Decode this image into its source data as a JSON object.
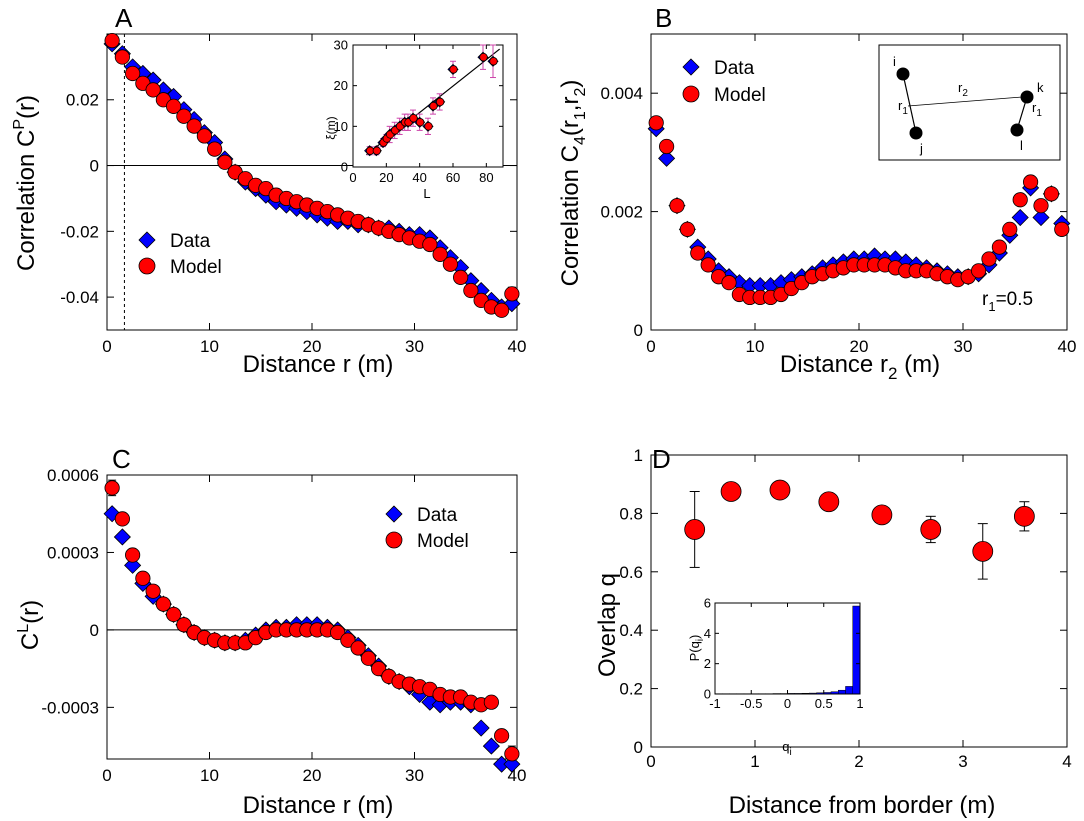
{
  "chart_data": [
    {
      "panel": "A",
      "type": "scatter",
      "xlabel": "Distance r (m)",
      "ylabel": "Correlation C^P(r)",
      "xlim": [
        0,
        40
      ],
      "ylim": [
        -0.05,
        0.04
      ],
      "xticks": [
        "0",
        "10",
        "20",
        "30",
        "40"
      ],
      "yticks": [
        "-0.04",
        "-0.02",
        "0",
        "0.02"
      ],
      "legend_position": "center-left",
      "series": [
        {
          "name": "Data",
          "marker": "diamond",
          "color": "#0000ff",
          "x": [
            0.5,
            1.5,
            2.5,
            3.5,
            4.5,
            5.5,
            6.5,
            7.5,
            8.5,
            9.5,
            10.5,
            11.5,
            12.5,
            13.5,
            14.5,
            15.5,
            16.5,
            17.5,
            18.5,
            19.5,
            20.5,
            21.5,
            22.5,
            23.5,
            24.5,
            25.5,
            26.5,
            27.5,
            28.5,
            29.5,
            30.5,
            31.5,
            32.5,
            33.5,
            34.5,
            35.5,
            36.5,
            37.5,
            38.5,
            39.5
          ],
          "y": [
            0.037,
            0.034,
            0.03,
            0.028,
            0.026,
            0.023,
            0.021,
            0.017,
            0.014,
            0.01,
            0.007,
            0.002,
            -0.002,
            -0.005,
            -0.007,
            -0.009,
            -0.011,
            -0.012,
            -0.013,
            -0.014,
            -0.015,
            -0.016,
            -0.017,
            -0.017,
            -0.018,
            -0.018,
            -0.019,
            -0.019,
            -0.02,
            -0.021,
            -0.021,
            -0.022,
            -0.025,
            -0.028,
            -0.031,
            -0.035,
            -0.038,
            -0.041,
            -0.043,
            -0.042
          ]
        },
        {
          "name": "Model",
          "marker": "circle",
          "color": "#ff0000",
          "x": [
            0.5,
            1.5,
            2.5,
            3.5,
            4.5,
            5.5,
            6.5,
            7.5,
            8.5,
            9.5,
            10.5,
            11.5,
            12.5,
            13.5,
            14.5,
            15.5,
            16.5,
            17.5,
            18.5,
            19.5,
            20.5,
            21.5,
            22.5,
            23.5,
            24.5,
            25.5,
            26.5,
            27.5,
            28.5,
            29.5,
            30.5,
            31.5,
            32.5,
            33.5,
            34.5,
            35.5,
            36.5,
            37.5,
            38.5,
            39.5
          ],
          "y": [
            0.038,
            0.033,
            0.028,
            0.025,
            0.023,
            0.02,
            0.018,
            0.015,
            0.012,
            0.009,
            0.005,
            0.001,
            -0.002,
            -0.004,
            -0.006,
            -0.007,
            -0.009,
            -0.01,
            -0.011,
            -0.012,
            -0.013,
            -0.014,
            -0.015,
            -0.016,
            -0.017,
            -0.018,
            -0.019,
            -0.02,
            -0.021,
            -0.022,
            -0.023,
            -0.024,
            -0.027,
            -0.03,
            -0.034,
            -0.038,
            -0.041,
            -0.043,
            -0.044,
            -0.039
          ],
          "errors_y": {
            "39.5": 0.002
          }
        }
      ],
      "annotations": [
        {
          "type": "vline",
          "x": 1.7,
          "style": "dotted"
        },
        {
          "type": "hline",
          "y": 0
        }
      ],
      "inset": {
        "type": "scatter",
        "xlabel": "L",
        "ylabel": "ξ(m)",
        "xlim": [
          0,
          90
        ],
        "ylim": [
          0,
          30
        ],
        "xticks": [
          "0",
          "20",
          "40",
          "60",
          "80"
        ],
        "yticks": [
          "0",
          "10",
          "20",
          "30"
        ],
        "series": [
          {
            "name": "Data",
            "marker": "diamond",
            "color": "#0000ff",
            "x": [
              10,
              14,
              18,
              20,
              22,
              25,
              28,
              31,
              33,
              36,
              40,
              45,
              48,
              52,
              60,
              78,
              84
            ],
            "y": [
              4,
              4,
              6,
              7,
              8,
              9,
              10,
              11,
              11,
              12,
              11,
              10,
              15,
              16,
              24,
              27,
              26
            ]
          },
          {
            "name": "Model",
            "marker": "circle",
            "color": "#ff0000",
            "x": [
              10,
              14,
              18,
              20,
              22,
              25,
              28,
              31,
              33,
              36,
              40,
              45,
              48,
              52,
              60,
              78,
              84
            ],
            "y": [
              4,
              4,
              6,
              7,
              8,
              9,
              10,
              11,
              11,
              12,
              11,
              10,
              15,
              16,
              24,
              27,
              26
            ],
            "error": [
              1,
              1,
              1,
              1,
              2,
              2,
              2,
              2,
              2,
              2,
              2,
              2,
              2,
              2,
              2,
              3,
              4
            ]
          }
        ],
        "fit_line": {
          "x": [
            8,
            88
          ],
          "y": [
            3,
            29
          ]
        }
      }
    },
    {
      "panel": "B",
      "type": "scatter",
      "xlabel": "Distance r_2 (m)",
      "ylabel": "Correlation C_4(r_1,r_2)",
      "xlim": [
        0,
        40
      ],
      "ylim": [
        0,
        0.005
      ],
      "xticks": [
        "0",
        "10",
        "20",
        "30",
        "40"
      ],
      "yticks": [
        "0",
        "0.002",
        "0.004"
      ],
      "legend_position": "top-left",
      "annotation_text": "r1=0.5",
      "series": [
        {
          "name": "Data",
          "marker": "diamond",
          "color": "#0000ff",
          "x": [
            0.5,
            1.5,
            2.5,
            3.5,
            4.5,
            5.5,
            6.5,
            7.5,
            8.5,
            9.5,
            10.5,
            11.5,
            12.5,
            13.5,
            14.5,
            15.5,
            16.5,
            17.5,
            18.5,
            19.5,
            20.5,
            21.5,
            22.5,
            23.5,
            24.5,
            25.5,
            26.5,
            27.5,
            28.5,
            29.5,
            30.5,
            31.5,
            32.5,
            33.5,
            34.5,
            35.5,
            36.5,
            37.5,
            38.5,
            39.5
          ],
          "y": [
            0.0034,
            0.0029,
            0.0021,
            0.0017,
            0.0014,
            0.0012,
            0.001,
            0.0009,
            0.0008,
            0.00075,
            0.00075,
            0.00075,
            0.0008,
            0.00085,
            0.0009,
            0.00095,
            0.00105,
            0.0011,
            0.00115,
            0.0012,
            0.0012,
            0.00125,
            0.0012,
            0.0012,
            0.00115,
            0.0011,
            0.00105,
            0.001,
            0.00095,
            0.0009,
            0.0009,
            0.00095,
            0.0011,
            0.0013,
            0.0016,
            0.0019,
            0.0024,
            0.0019,
            0.0023,
            0.0018
          ]
        },
        {
          "name": "Model",
          "marker": "circle",
          "color": "#ff0000",
          "x": [
            0.5,
            1.5,
            2.5,
            3.5,
            4.5,
            5.5,
            6.5,
            7.5,
            8.5,
            9.5,
            10.5,
            11.5,
            12.5,
            13.5,
            14.5,
            15.5,
            16.5,
            17.5,
            18.5,
            19.5,
            20.5,
            21.5,
            22.5,
            23.5,
            24.5,
            25.5,
            26.5,
            27.5,
            28.5,
            29.5,
            30.5,
            31.5,
            32.5,
            33.5,
            34.5,
            35.5,
            36.5,
            37.5,
            38.5,
            39.5
          ],
          "y": [
            0.0035,
            0.0031,
            0.0021,
            0.0017,
            0.0013,
            0.0011,
            0.0009,
            0.0008,
            0.0006,
            0.00055,
            0.00055,
            0.00055,
            0.0006,
            0.0007,
            0.0008,
            0.0009,
            0.00095,
            0.001,
            0.00105,
            0.0011,
            0.0011,
            0.0011,
            0.0011,
            0.00105,
            0.001,
            0.001,
            0.001,
            0.00095,
            0.0009,
            0.00085,
            0.0009,
            0.001,
            0.0012,
            0.0014,
            0.0017,
            0.0022,
            0.0025,
            0.0021,
            0.0023,
            0.0017
          ]
        }
      ],
      "inset_diagram": {
        "points": [
          "i",
          "j",
          "k",
          "l"
        ],
        "labels": [
          "r1",
          "r2",
          "r1"
        ]
      }
    },
    {
      "panel": "C",
      "type": "scatter",
      "xlabel": "Distance r (m)",
      "ylabel": "C^L(r)",
      "xlim": [
        0,
        40
      ],
      "ylim": [
        -0.0005,
        0.0006
      ],
      "xticks": [
        "0",
        "10",
        "20",
        "30",
        "40"
      ],
      "yticks": [
        "-0.0003",
        "0",
        "0.0003",
        "0.0006"
      ],
      "legend_position": "top-right",
      "series": [
        {
          "name": "Data",
          "marker": "diamond",
          "color": "#0000ff",
          "x": [
            0.5,
            1.5,
            2.5,
            3.5,
            4.5,
            5.5,
            6.5,
            7.5,
            8.5,
            9.5,
            10.5,
            11.5,
            12.5,
            13.5,
            14.5,
            15.5,
            16.5,
            17.5,
            18.5,
            19.5,
            20.5,
            21.5,
            22.5,
            23.5,
            24.5,
            25.5,
            26.5,
            27.5,
            28.5,
            29.5,
            30.5,
            31.5,
            32.5,
            33.5,
            34.5,
            35.5,
            36.5,
            37.5,
            38.5,
            39.5
          ],
          "y": [
            0.00045,
            0.00036,
            0.00025,
            0.00018,
            0.00013,
            0.0001,
            6e-05,
            2e-05,
            -1e-05,
            -3e-05,
            -4e-05,
            -5e-05,
            -5e-05,
            -4e-05,
            -2e-05,
            0.0,
            1e-05,
            1e-05,
            2e-05,
            2e-05,
            2e-05,
            1e-05,
            0.0,
            -3e-05,
            -6e-05,
            -0.0001,
            -0.00014,
            -0.00018,
            -0.0002,
            -0.00022,
            -0.00025,
            -0.00028,
            -0.00029,
            -0.00028,
            -0.00028,
            -0.00029,
            -0.00038,
            -0.00045,
            -0.00052,
            -0.00052
          ]
        },
        {
          "name": "Model",
          "marker": "circle",
          "color": "#ff0000",
          "x": [
            0.5,
            1.5,
            2.5,
            3.5,
            4.5,
            5.5,
            6.5,
            7.5,
            8.5,
            9.5,
            10.5,
            11.5,
            12.5,
            13.5,
            14.5,
            15.5,
            16.5,
            17.5,
            18.5,
            19.5,
            20.5,
            21.5,
            22.5,
            23.5,
            24.5,
            25.5,
            26.5,
            27.5,
            28.5,
            29.5,
            30.5,
            31.5,
            32.5,
            33.5,
            34.5,
            35.5,
            36.5,
            37.5,
            38.5,
            39.5
          ],
          "y": [
            0.00055,
            0.00043,
            0.00029,
            0.0002,
            0.00015,
            0.0001,
            6e-05,
            2e-05,
            -1e-05,
            -3e-05,
            -4e-05,
            -5e-05,
            -5e-05,
            -5e-05,
            -3e-05,
            -1e-05,
            0.0,
            0.0,
            0.0,
            0.0,
            0.0,
            0.0,
            -1e-05,
            -4e-05,
            -7e-05,
            -0.00011,
            -0.00015,
            -0.00018,
            -0.0002,
            -0.00021,
            -0.00022,
            -0.00023,
            -0.00025,
            -0.00026,
            -0.00026,
            -0.00028,
            -0.00029,
            -0.00028,
            -0.00041,
            -0.00048
          ]
        }
      ]
    },
    {
      "panel": "D",
      "type": "scatter",
      "xlabel": "Distance from border (m)",
      "ylabel": "Overlap q",
      "xlim": [
        0,
        4
      ],
      "ylim": [
        0,
        1
      ],
      "xticks": [
        "0",
        "1",
        "2",
        "3",
        "4"
      ],
      "yticks": [
        "0",
        "0.2",
        "0.4",
        "0.6",
        "0.8",
        "1"
      ],
      "series": [
        {
          "name": "",
          "marker": "circle",
          "color": "#ff0000",
          "x": [
            0.42,
            0.77,
            1.24,
            1.71,
            2.22,
            2.69,
            3.19,
            3.59
          ],
          "y": [
            0.745,
            0.875,
            0.88,
            0.84,
            0.795,
            0.745,
            0.67,
            0.79
          ],
          "error": [
            0.13,
            0.02,
            0.015,
            0.02,
            0.02,
            0.045,
            0.095,
            0.05
          ]
        }
      ],
      "inset": {
        "type": "bar",
        "xlabel": "q_i",
        "ylabel": "P(q_i)",
        "xlim": [
          -1,
          1
        ],
        "ylim": [
          0,
          6
        ],
        "xticks": [
          "-1",
          "-0.5",
          "0",
          "0.5",
          "1"
        ],
        "yticks": [
          "0",
          "2",
          "4",
          "6"
        ],
        "bin_width": 0.1,
        "bin_starts": [
          -1.0,
          -0.9,
          -0.8,
          -0.7,
          -0.6,
          -0.5,
          -0.4,
          -0.3,
          -0.2,
          -0.1,
          0.0,
          0.1,
          0.2,
          0.3,
          0.4,
          0.5,
          0.6,
          0.7,
          0.8,
          0.9
        ],
        "values": [
          0.02,
          0.02,
          0.02,
          0.02,
          0.02,
          0.02,
          0.02,
          0.02,
          0.03,
          0.03,
          0.04,
          0.04,
          0.05,
          0.06,
          0.08,
          0.1,
          0.15,
          0.25,
          0.5,
          5.8
        ],
        "color": "#0000ff"
      }
    }
  ],
  "panel_labels": [
    "A",
    "B",
    "C",
    "D"
  ],
  "legend": {
    "data": "Data",
    "model": "Model"
  },
  "text": {
    "a_xlabel": "Distance r (m)",
    "b_xlabel": "Distance r",
    "b_xlabel_sub": "2",
    "b_xlabel_tail": " (m)",
    "c_xlabel": "Distance r (m)",
    "d_xlabel": "Distance from border (m)",
    "d_ylabel": "Overlap q",
    "a_ylabel": "Correlation C",
    "a_ylabel_sup": "P",
    "a_ylabel_tail": "(r)",
    "b_ylabel": "Correlation C",
    "b_ylabel_sub": "4",
    "b_ylabel_tail": "(r",
    "b_ylabel_sub2": "1",
    "b_ylabel_tail2": ",r",
    "b_ylabel_sub3": "2",
    "b_ylabel_tail3": ")",
    "c_ylabel": "C",
    "c_ylabel_sup": "L",
    "c_ylabel_tail": "(r)",
    "b_r1_label": "r",
    "b_r1_sub": "1",
    "b_r1_value": "=0.5",
    "inset_a_xlabel": "L",
    "inset_a_ylabel": "ξ(m)",
    "inset_d_xlabel": "q",
    "inset_d_xlabel_sub": "i",
    "inset_d_ylabel": "P(q",
    "inset_d_ylabel_sub": "i",
    "inset_d_ylabel_tail": ")",
    "diagram_i": "i",
    "diagram_j": "j",
    "diagram_k": "k",
    "diagram_l": "l",
    "diagram_r": "r",
    "diagram_sub1": "1",
    "diagram_sub2": "2"
  }
}
